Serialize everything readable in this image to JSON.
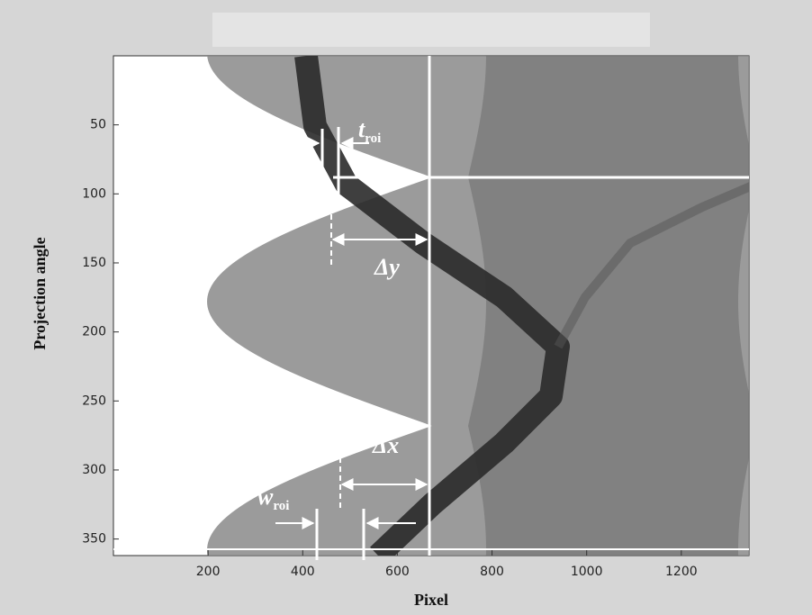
{
  "chart_data": {
    "type": "image",
    "x_label": "Pixel",
    "y_label": "Projection angle",
    "xlim": [
      0,
      1343
    ],
    "xticks": [
      200,
      400,
      600,
      800,
      1000,
      1200
    ],
    "ylim": [
      0,
      362
    ],
    "yticks": [
      50,
      100,
      150,
      200,
      250,
      300,
      350
    ],
    "y_inverted": true,
    "annotations": [
      {
        "text": "t",
        "sub": "roi"
      },
      {
        "text": "Δy"
      },
      {
        "text": "Δx"
      },
      {
        "text": "w",
        "sub": "roi"
      }
    ]
  }
}
